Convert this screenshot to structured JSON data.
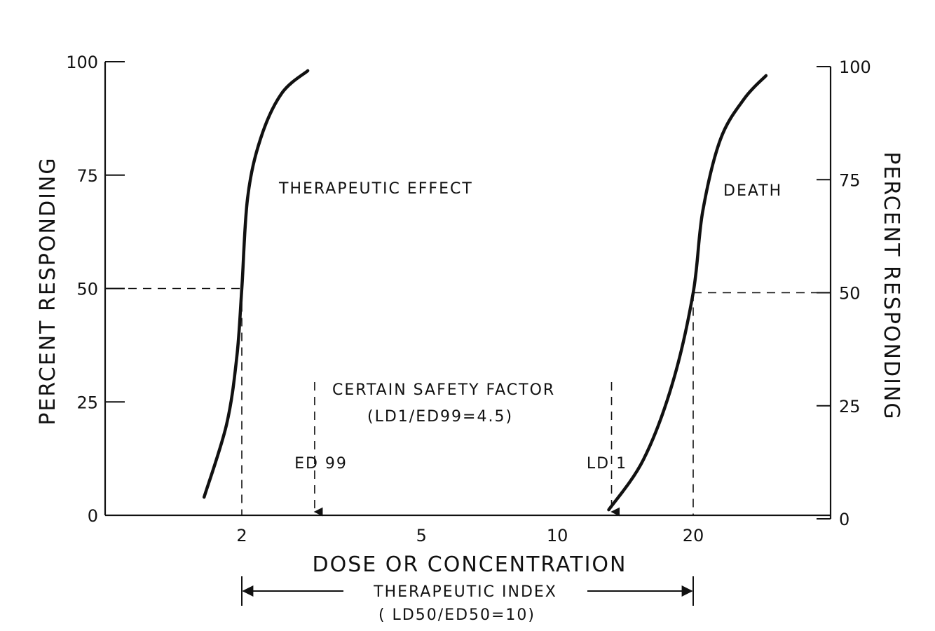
{
  "chart_data": {
    "type": "line",
    "title": "",
    "xlabel": "DOSE OR CONCENTRATION",
    "ylabel_left": "PERCENT RESPONDING",
    "ylabel_right": "PERCENT RESPONDING",
    "x_scale": "log",
    "x_ticks": [
      2,
      5,
      10,
      20
    ],
    "y_ticks": [
      0,
      25,
      50,
      75,
      100
    ],
    "ylim": [
      0,
      100
    ],
    "xlim": [
      1,
      40
    ],
    "grid": false,
    "colors": {
      "ink": "#111111",
      "background": "#ffffff"
    },
    "series": [
      {
        "name": "THERAPEUTIC EFFECT",
        "x": [
          1.65,
          1.85,
          1.95,
          2.0,
          2.06,
          2.2,
          2.45,
          2.8
        ],
        "y": [
          4,
          20,
          35,
          50,
          70,
          83,
          93,
          98
        ]
      },
      {
        "name": "DEATH",
        "x": [
          13,
          15.5,
          18,
          20,
          21,
          23,
          26,
          29
        ],
        "y": [
          2,
          13,
          30,
          50,
          68,
          84,
          93,
          98
        ]
      }
    ],
    "markers": [
      {
        "label": "ED 99",
        "x": 2.9
      },
      {
        "label": "LD 1",
        "x": 13
      }
    ],
    "annotations": {
      "safety_factor_title": "CERTAIN SAFETY FACTOR",
      "safety_factor_value": "(LD1/ED99=4.5)",
      "therapeutic_index_title": "THERAPEUTIC INDEX",
      "therapeutic_index_value": "( LD50/ED50=10)"
    },
    "reference_lines": [
      {
        "label": "ED50",
        "x": 2,
        "y": 50
      },
      {
        "label": "LD50",
        "x": 20,
        "y": 50
      }
    ]
  }
}
